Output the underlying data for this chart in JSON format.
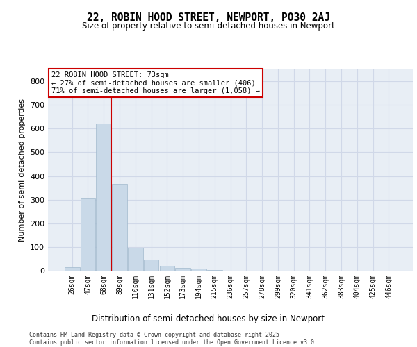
{
  "title_line1": "22, ROBIN HOOD STREET, NEWPORT, PO30 2AJ",
  "title_line2": "Size of property relative to semi-detached houses in Newport",
  "xlabel": "Distribution of semi-detached houses by size in Newport",
  "ylabel": "Number of semi-detached properties",
  "categories": [
    "26sqm",
    "47sqm",
    "68sqm",
    "89sqm",
    "110sqm",
    "131sqm",
    "152sqm",
    "173sqm",
    "194sqm",
    "215sqm",
    "236sqm",
    "257sqm",
    "278sqm",
    "299sqm",
    "320sqm",
    "341sqm",
    "362sqm",
    "383sqm",
    "404sqm",
    "425sqm",
    "446sqm"
  ],
  "bar_heights": [
    15,
    305,
    620,
    365,
    98,
    48,
    20,
    12,
    10,
    2,
    0,
    0,
    0,
    0,
    0,
    0,
    0,
    0,
    0,
    0,
    0
  ],
  "bar_color": "#c9d9e8",
  "bar_edge_color": "#a0b8cc",
  "grid_color": "#d0d8e8",
  "bg_color": "#e8eef5",
  "vline_color": "#cc0000",
  "annotation_text": "22 ROBIN HOOD STREET: 73sqm\n← 27% of semi-detached houses are smaller (406)\n71% of semi-detached houses are larger (1,058) →",
  "annotation_box_color": "#cc0000",
  "ylim": [
    0,
    850
  ],
  "yticks": [
    0,
    100,
    200,
    300,
    400,
    500,
    600,
    700,
    800
  ],
  "footer_line1": "Contains HM Land Registry data © Crown copyright and database right 2025.",
  "footer_line2": "Contains public sector information licensed under the Open Government Licence v3.0."
}
